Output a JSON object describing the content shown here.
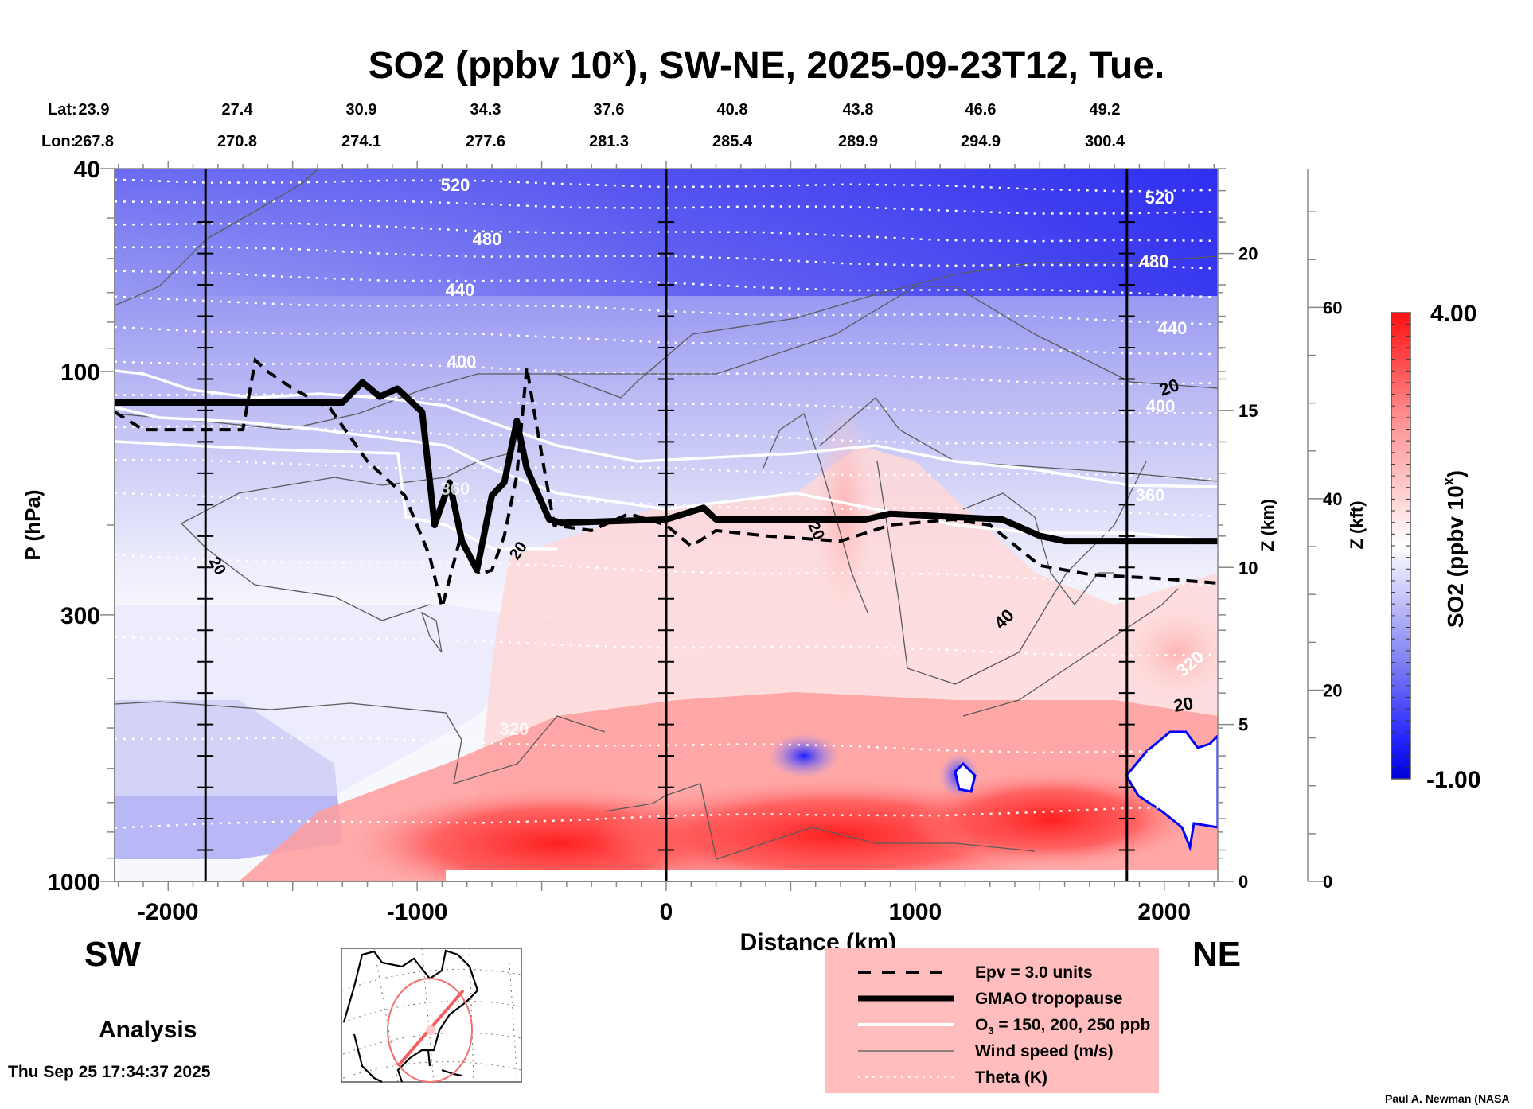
{
  "chart_data": {
    "type": "heatmap",
    "title_main": "SO2 (ppbv 10",
    "title_sup": "x",
    "title_rest": "), SW-NE, 2025-09-23T12, Tue.",
    "lat_label": "Lat:",
    "lon_label": "Lon:",
    "lat_ticks": [
      "23.9",
      "27.4",
      "30.9",
      "34.3",
      "37.6",
      "40.8",
      "43.8",
      "46.6",
      "49.2"
    ],
    "lon_ticks": [
      "267.8",
      "270.8",
      "274.1",
      "277.6",
      "281.3",
      "285.4",
      "289.9",
      "294.9",
      "300.4"
    ],
    "xlabel": "Distance (km)",
    "xlim": [
      -2215,
      2215
    ],
    "x_ticks": [
      -2000,
      -1000,
      0,
      1000,
      2000
    ],
    "x_tick_labels": [
      "-2000",
      "-1000",
      "0",
      "1000",
      "2000"
    ],
    "ylabel": "P (hPa)",
    "ylim": [
      1000,
      40
    ],
    "y_scale": "log",
    "y_ticks": [
      40,
      100,
      300,
      1000
    ],
    "y_tick_labels": [
      "40",
      "100",
      "300",
      "1000"
    ],
    "z_km_label": "Z (km)",
    "z_km_ticks": [
      0,
      5,
      10,
      15,
      20
    ],
    "z_km_tick_labels": [
      "0",
      "5",
      "10",
      "15",
      "20"
    ],
    "z_kft_label": "Z (kft)",
    "z_kft_ticks": [
      0,
      20,
      40,
      60
    ],
    "z_kft_tick_labels": [
      "0",
      "20",
      "40",
      "60"
    ],
    "vertical_markers_km": [
      -1850,
      0,
      1850
    ],
    "colorbar": {
      "label_main": "SO2 (ppbv 10",
      "label_sup": "x",
      "label_rest": ")",
      "min": -1.0,
      "max": 4.0,
      "min_label": "-1.00",
      "max_label": "4.00",
      "colors": [
        "#0000ff",
        "#ffffff",
        "#ff0000"
      ]
    },
    "theta_contours_K": [
      {
        "value": 520,
        "label": "520",
        "p_left": 45,
        "p_right": 50
      },
      {
        "value": 480,
        "label": "480",
        "p_left": 53,
        "p_right": 62
      },
      {
        "value": 440,
        "label": "440",
        "p_left": 64,
        "p_right": 78
      },
      {
        "value": 400,
        "label": "400",
        "p_left": 79,
        "p_right": 102
      },
      {
        "value": 360,
        "label": "360",
        "p_left": 140,
        "p_right": 160
      },
      {
        "value": 320,
        "label": "320",
        "p_left": 320,
        "p_right": 400
      },
      {
        "value": 300,
        "label": "",
        "p_left": 970,
        "p_right": 780
      }
    ],
    "tropopause_hPa": {
      "x": [
        -2215,
        -1300,
        -1220,
        -1150,
        -1080,
        -980,
        -930,
        -870,
        -820,
        -760,
        -700,
        -650,
        -600,
        -560,
        -470,
        -420,
        0,
        150,
        200,
        300,
        800,
        900,
        1350,
        1500,
        1600,
        2215
      ],
      "p": [
        115,
        115,
        105,
        112,
        108,
        120,
        200,
        165,
        215,
        245,
        175,
        165,
        125,
        155,
        195,
        198,
        195,
        185,
        195,
        195,
        195,
        190,
        195,
        210,
        215,
        215
      ]
    },
    "epv_3_hPa": {
      "x": [
        -2215,
        -2100,
        -1850,
        -1700,
        -1650,
        -1600,
        -1500,
        -1350,
        -1200,
        -1050,
        -950,
        -900,
        -830,
        -750,
        -700,
        -650,
        -600,
        -560,
        -530,
        -450,
        -300,
        -150,
        0,
        100,
        200,
        400,
        700,
        900,
        1150,
        1300,
        1500,
        1700,
        2000,
        2215
      ],
      "p": [
        120,
        130,
        130,
        130,
        95,
        100,
        108,
        118,
        150,
        175,
        230,
        290,
        215,
        250,
        245,
        210,
        160,
        98,
        120,
        200,
        205,
        190,
        200,
        220,
        205,
        210,
        215,
        200,
        195,
        200,
        240,
        250,
        255,
        260
      ]
    },
    "wind_speed_labels_ms": [
      "20",
      "20",
      "20",
      "20",
      "40",
      "20"
    ],
    "theta_labels_K": [
      "520",
      "480",
      "440",
      "400",
      "360",
      "320",
      "520",
      "480",
      "440",
      "400",
      "360",
      "320"
    ],
    "so2_field_description": "Log10 SO2 (ppbv): blue (~-0.5 to -1) in stratosphere above ~150 hPa, near-white around 200-300 hPa, red (2-4) in boundary layer below ~600 hPa, strongest 700-1000 hPa between -1000 and 1500 km; blue pockets near 600-800 hPa at 400-600 km, 1100-1300 km and 1850-2215 km."
  },
  "labels": {
    "sw": "SW",
    "ne": "NE",
    "analysis": "Analysis",
    "timestamp": "Thu Sep 25 17:34:37 2025",
    "author": "Paul A. Newman (NASA"
  },
  "legend": {
    "background": "#ffbdbd",
    "items": [
      {
        "label": "Epv = 3.0 units",
        "style": "dashed-black"
      },
      {
        "label": "GMAO tropopause",
        "style": "thick-black"
      },
      {
        "label_main": "O",
        "label_sub": "3",
        "label_rest": " = 150, 200, 250 ppb",
        "style": "white"
      },
      {
        "label": "Wind speed (m/s)",
        "style": "thin-gray"
      },
      {
        "label": "Theta (K)",
        "style": "dotted-white"
      }
    ]
  },
  "map_inset": {
    "description": "North America polar-stereo inset with red great-circle section line from Gulf of Mexico to Nova Scotia inside a red circle",
    "line_color": "#f06060"
  }
}
